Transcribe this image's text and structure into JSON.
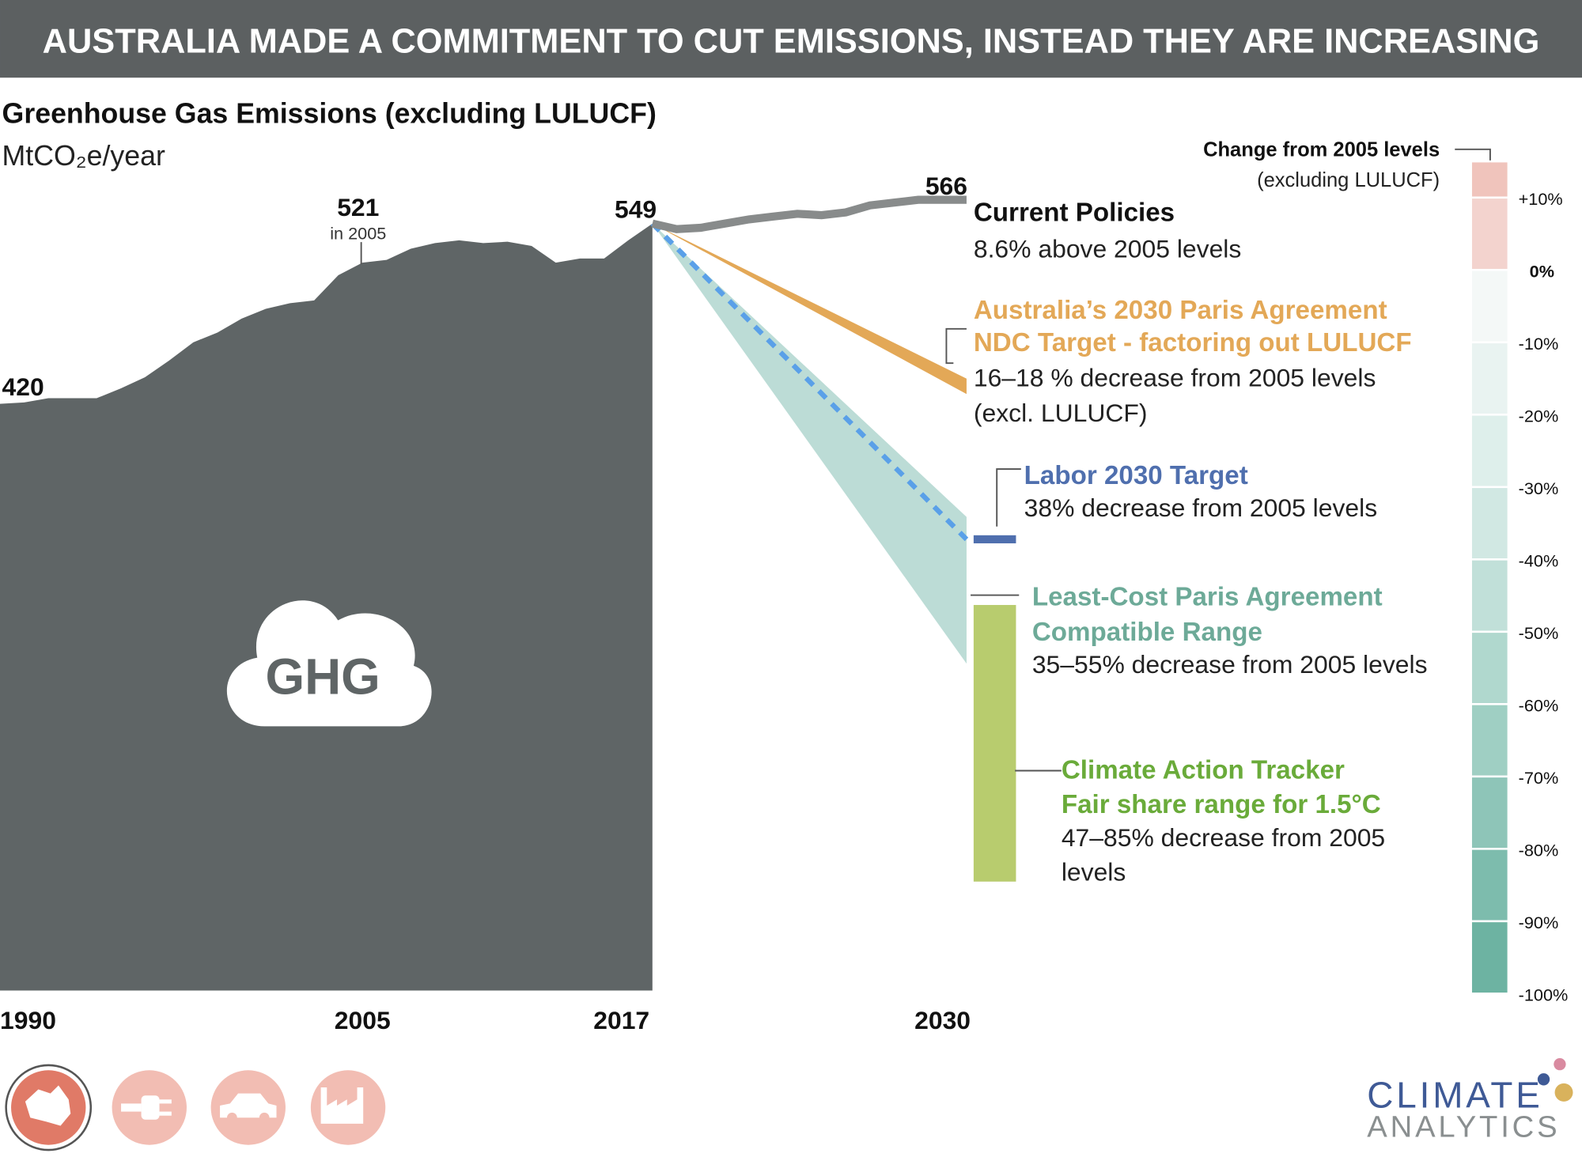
{
  "header": {
    "title": "AUSTRALIA MADE A COMMITMENT TO CUT EMISSIONS, INSTEAD THEY ARE INCREASING"
  },
  "chart_data": {
    "type": "area",
    "title": "Greenhouse Gas Emissions (excluding LULUCF)",
    "subtitle": "MtCO₂e/year",
    "annotation": "in 2005",
    "x": [
      1990,
      1991,
      1992,
      1993,
      1994,
      1995,
      1996,
      1997,
      1998,
      1999,
      2000,
      2001,
      2002,
      2003,
      2004,
      2005,
      2006,
      2007,
      2008,
      2009,
      2010,
      2011,
      2012,
      2013,
      2014,
      2015,
      2016,
      2017
    ],
    "values": [
      420,
      421,
      424,
      424,
      424,
      431,
      439,
      451,
      464,
      471,
      481,
      488,
      492,
      494,
      512,
      521,
      523,
      531,
      535,
      537,
      535,
      536,
      533,
      521,
      524,
      524,
      537,
      549
    ],
    "color": "#5f6566",
    "xlim": [
      1990,
      2030
    ],
    "xticks": [
      1990,
      2005,
      2017,
      2030
    ],
    "projections": [
      {
        "label": [
          "Current Policies"
        ],
        "description": [
          "8.6% above 2005 levels"
        ],
        "color": "#888b8b",
        "label_color": "#111111",
        "x": [
          2017,
          2018,
          2019,
          2020,
          2021,
          2022,
          2023,
          2024,
          2025,
          2026,
          2027,
          2028,
          2029,
          2030
        ],
        "values": [
          549,
          545,
          546,
          549,
          552,
          554,
          556,
          555,
          557,
          562,
          564,
          566,
          566,
          566
        ]
      },
      {
        "label": [
          "Australia’s 2030 Paris Agreement",
          "NDC Target - factoring out LULUCF"
        ],
        "description": [
          "16–18 % decrease from 2005 levels",
          "(excl. LULUCF)"
        ],
        "color": "#e3a857",
        "label_color": "#e3a857",
        "x": [
          2017,
          2030
        ],
        "upper": [
          549,
          438
        ],
        "lower": [
          549,
          427
        ]
      },
      {
        "label": [
          "Labor 2030 Target"
        ],
        "description": [
          "38% decrease from 2005 levels"
        ],
        "color": "#4f6fae",
        "line_color": "#5aa0e8",
        "label_color": "#4f6fae",
        "x": [
          2017,
          2030
        ],
        "values": [
          549,
          323
        ]
      },
      {
        "label": [
          "Least-Cost Paris Agreement",
          "Compatible Range"
        ],
        "description": [
          "35–55% decrease from 2005 levels"
        ],
        "color": "#bcdcd6",
        "label_color": "#6daa98",
        "x": [
          2017,
          2030
        ],
        "upper": [
          549,
          339
        ],
        "lower": [
          549,
          234
        ]
      },
      {
        "label": [
          "Climate Action Tracker",
          "Fair share range for 1.5°C"
        ],
        "description": [
          "47–85% decrease from 2005",
          "levels"
        ],
        "color": "#b8cc6e",
        "label_color": "#6aab3a",
        "x": [
          2030
        ],
        "upper": [
          276
        ],
        "lower": [
          78
        ]
      }
    ],
    "scale": {
      "title": "Change from 2005 levels",
      "subtitle": "(excluding LULUCF)",
      "ylim": [
        -100,
        15
      ],
      "yticks": [
        {
          "value": 10,
          "label": "+10%"
        },
        {
          "value": 0,
          "label": "0%"
        },
        {
          "value": -10,
          "label": "-10%"
        },
        {
          "value": -20,
          "label": "-20%"
        },
        {
          "value": -30,
          "label": "-30%"
        },
        {
          "value": -40,
          "label": "-40%"
        },
        {
          "value": -50,
          "label": "-50%"
        },
        {
          "value": -60,
          "label": "-60%"
        },
        {
          "value": -70,
          "label": "-70%"
        },
        {
          "value": -80,
          "label": "-80%"
        },
        {
          "value": -90,
          "label": "-90%"
        },
        {
          "value": -100,
          "label": "-100%"
        }
      ],
      "colors": [
        "#f0c4bc",
        "#f3d3ce",
        "#f4f8f7",
        "#e9f3f1",
        "#deefeb",
        "#d1e8e3",
        "#c1e0d9",
        "#b0d8ce",
        "#9fcfc3",
        "#8ec5b8",
        "#7dbcad",
        "#6db3a2"
      ]
    }
  },
  "cloud_label": "GHG",
  "logo": {
    "line1": "CLIMATE",
    "line2": "ANALYTICS"
  }
}
